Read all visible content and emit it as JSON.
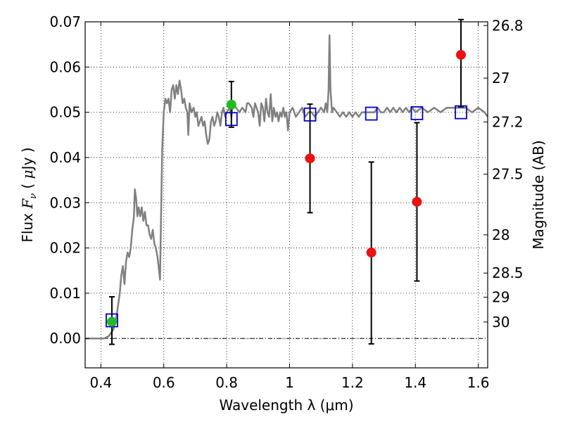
{
  "chart_data": {
    "type": "scatter",
    "xlabel": "Wavelength  λ (μm)",
    "ylabel": "Flux  F_ν  ( μJy )",
    "ylabel_parts": {
      "prefix": "Flux ",
      "symbol": "F",
      "subscript": "ν",
      "open": " ( ",
      "unit_mu": "μ",
      "unit": "Jy",
      "close": " )"
    },
    "y2label": "Magnitude (AB)",
    "xlim": [
      0.35,
      1.63
    ],
    "ylim": [
      -0.0065,
      0.07
    ],
    "grid": true,
    "x_ticks": [
      0.4,
      0.6,
      0.8,
      1.0,
      1.2,
      1.4,
      1.6
    ],
    "x_tick_labels": [
      "0.4",
      "0.6",
      "0.8",
      "1",
      "1.2",
      "1.4",
      "1.6"
    ],
    "y_ticks": [
      0.0,
      0.01,
      0.02,
      0.03,
      0.04,
      0.05,
      0.06,
      0.07
    ],
    "y_tick_labels": [
      "0.00",
      "0.01",
      "0.02",
      "0.03",
      "0.04",
      "0.05",
      "0.06",
      "0.07"
    ],
    "y2_ticks": [
      26.8,
      27,
      27.2,
      27.5,
      28,
      28.5,
      29,
      30
    ],
    "y2_tick_labels": [
      "26.8",
      "27",
      "27.2",
      "27.5",
      "28",
      "28.5",
      "29",
      "30"
    ],
    "series": [
      {
        "kind": "line",
        "color": "#808080",
        "points": [
          [
            0.35,
            0.0
          ],
          [
            0.41,
            0.0
          ],
          [
            0.425,
            0.0005
          ],
          [
            0.44,
            0.002
          ],
          [
            0.45,
            0.005
          ],
          [
            0.46,
            0.01
          ],
          [
            0.465,
            0.014
          ],
          [
            0.47,
            0.016
          ],
          [
            0.475,
            0.012
          ],
          [
            0.48,
            0.017
          ],
          [
            0.485,
            0.019
          ],
          [
            0.49,
            0.018
          ],
          [
            0.495,
            0.02
          ],
          [
            0.5,
            0.024
          ],
          [
            0.505,
            0.027
          ],
          [
            0.508,
            0.033
          ],
          [
            0.512,
            0.031
          ],
          [
            0.516,
            0.027
          ],
          [
            0.52,
            0.029
          ],
          [
            0.525,
            0.027
          ],
          [
            0.53,
            0.029
          ],
          [
            0.535,
            0.026
          ],
          [
            0.54,
            0.028
          ],
          [
            0.545,
            0.025
          ],
          [
            0.55,
            0.025
          ],
          [
            0.555,
            0.023
          ],
          [
            0.56,
            0.022
          ],
          [
            0.565,
            0.024
          ],
          [
            0.57,
            0.021
          ],
          [
            0.575,
            0.02
          ],
          [
            0.58,
            0.018
          ],
          [
            0.585,
            0.015
          ],
          [
            0.588,
            0.013
          ],
          [
            0.59,
            0.022
          ],
          [
            0.595,
            0.042
          ],
          [
            0.6,
            0.05
          ],
          [
            0.605,
            0.053
          ],
          [
            0.61,
            0.052
          ],
          [
            0.615,
            0.053
          ],
          [
            0.62,
            0.05
          ],
          [
            0.625,
            0.055
          ],
          [
            0.63,
            0.056
          ],
          [
            0.635,
            0.053
          ],
          [
            0.64,
            0.056
          ],
          [
            0.645,
            0.054
          ],
          [
            0.65,
            0.057
          ],
          [
            0.655,
            0.055
          ],
          [
            0.66,
            0.052
          ],
          [
            0.665,
            0.053
          ],
          [
            0.67,
            0.051
          ],
          [
            0.675,
            0.05
          ],
          [
            0.678,
            0.045
          ],
          [
            0.682,
            0.052
          ],
          [
            0.688,
            0.05
          ],
          [
            0.695,
            0.051
          ],
          [
            0.7,
            0.049
          ],
          [
            0.705,
            0.05
          ],
          [
            0.71,
            0.047
          ],
          [
            0.715,
            0.048
          ],
          [
            0.72,
            0.049
          ],
          [
            0.725,
            0.047
          ],
          [
            0.73,
            0.048
          ],
          [
            0.735,
            0.045
          ],
          [
            0.74,
            0.043
          ],
          [
            0.745,
            0.044
          ],
          [
            0.75,
            0.048
          ],
          [
            0.755,
            0.049
          ],
          [
            0.76,
            0.047
          ],
          [
            0.765,
            0.048
          ],
          [
            0.77,
            0.05
          ],
          [
            0.775,
            0.049
          ],
          [
            0.78,
            0.047
          ],
          [
            0.785,
            0.05
          ],
          [
            0.79,
            0.051
          ],
          [
            0.795,
            0.049
          ],
          [
            0.8,
            0.05
          ],
          [
            0.81,
            0.051
          ],
          [
            0.815,
            0.049
          ],
          [
            0.82,
            0.052
          ],
          [
            0.83,
            0.051
          ],
          [
            0.84,
            0.05
          ],
          [
            0.85,
            0.051
          ],
          [
            0.86,
            0.05
          ],
          [
            0.865,
            0.052
          ],
          [
            0.87,
            0.052
          ],
          [
            0.88,
            0.051
          ],
          [
            0.885,
            0.049
          ],
          [
            0.89,
            0.052
          ],
          [
            0.9,
            0.05
          ],
          [
            0.905,
            0.047
          ],
          [
            0.91,
            0.052
          ],
          [
            0.915,
            0.051
          ],
          [
            0.92,
            0.048
          ],
          [
            0.925,
            0.053
          ],
          [
            0.93,
            0.05
          ],
          [
            0.935,
            0.049
          ],
          [
            0.94,
            0.054
          ],
          [
            0.945,
            0.048
          ],
          [
            0.95,
            0.051
          ],
          [
            0.955,
            0.049
          ],
          [
            0.96,
            0.05
          ],
          [
            0.965,
            0.048
          ],
          [
            0.97,
            0.05
          ],
          [
            0.975,
            0.049
          ],
          [
            0.98,
            0.051
          ],
          [
            0.985,
            0.049
          ],
          [
            0.99,
            0.05
          ],
          [
            0.995,
            0.046
          ],
          [
            1.0,
            0.05
          ],
          [
            1.01,
            0.051
          ],
          [
            1.02,
            0.049
          ],
          [
            1.03,
            0.05
          ],
          [
            1.04,
            0.051
          ],
          [
            1.05,
            0.049
          ],
          [
            1.06,
            0.05
          ],
          [
            1.07,
            0.05
          ],
          [
            1.08,
            0.049
          ],
          [
            1.09,
            0.05
          ],
          [
            1.1,
            0.051
          ],
          [
            1.11,
            0.05
          ],
          [
            1.115,
            0.052
          ],
          [
            1.12,
            0.05
          ],
          [
            1.124,
            0.055
          ],
          [
            1.127,
            0.067
          ],
          [
            1.13,
            0.055
          ],
          [
            1.135,
            0.05
          ],
          [
            1.14,
            0.051
          ],
          [
            1.15,
            0.05
          ],
          [
            1.16,
            0.049
          ],
          [
            1.17,
            0.05
          ],
          [
            1.18,
            0.049
          ],
          [
            1.19,
            0.05
          ],
          [
            1.2,
            0.049
          ],
          [
            1.21,
            0.05
          ],
          [
            1.22,
            0.049
          ],
          [
            1.23,
            0.05
          ],
          [
            1.24,
            0.05
          ],
          [
            1.25,
            0.05
          ],
          [
            1.26,
            0.05
          ],
          [
            1.27,
            0.05
          ],
          [
            1.28,
            0.051
          ],
          [
            1.29,
            0.05
          ],
          [
            1.3,
            0.05
          ],
          [
            1.31,
            0.051
          ],
          [
            1.32,
            0.05
          ],
          [
            1.33,
            0.051
          ],
          [
            1.34,
            0.05
          ],
          [
            1.35,
            0.051
          ],
          [
            1.36,
            0.05
          ],
          [
            1.37,
            0.051
          ],
          [
            1.38,
            0.05
          ],
          [
            1.39,
            0.051
          ],
          [
            1.4,
            0.05
          ],
          [
            1.42,
            0.051
          ],
          [
            1.44,
            0.05
          ],
          [
            1.46,
            0.051
          ],
          [
            1.48,
            0.05
          ],
          [
            1.5,
            0.051
          ],
          [
            1.52,
            0.051
          ],
          [
            1.54,
            0.051
          ],
          [
            1.56,
            0.051
          ],
          [
            1.58,
            0.05
          ],
          [
            1.6,
            0.051
          ],
          [
            1.62,
            0.05
          ],
          [
            1.63,
            0.049
          ]
        ]
      },
      {
        "kind": "markers",
        "marker": "open-square",
        "color": "#0000cc",
        "points": [
          [
            0.435,
            0.004
          ],
          [
            0.815,
            0.0485
          ],
          [
            1.065,
            0.0495
          ],
          [
            1.26,
            0.0497
          ],
          [
            1.405,
            0.0498
          ],
          [
            1.545,
            0.05
          ]
        ]
      },
      {
        "kind": "markers",
        "marker": "filled-circle",
        "color": "#22bb22",
        "points": [
          [
            0.435,
            0.0037
          ],
          [
            0.815,
            0.0517
          ]
        ]
      },
      {
        "kind": "markers",
        "marker": "filled-circle",
        "color": "#ee1111",
        "points": [
          [
            1.065,
            0.0398
          ],
          [
            1.26,
            0.019
          ],
          [
            1.405,
            0.0302
          ],
          [
            1.545,
            0.0627
          ]
        ]
      },
      {
        "kind": "errorbars",
        "color": "#000000",
        "bars": [
          {
            "x": 0.435,
            "ylow": -0.0013,
            "yhigh": 0.0092
          },
          {
            "x": 0.815,
            "ylow": 0.0467,
            "yhigh": 0.0568
          },
          {
            "x": 1.065,
            "ylow": 0.0278,
            "yhigh": 0.0518
          },
          {
            "x": 1.26,
            "ylow": -0.0012,
            "yhigh": 0.039
          },
          {
            "x": 1.405,
            "ylow": 0.0127,
            "yhigh": 0.0477
          },
          {
            "x": 1.545,
            "ylow": 0.0512,
            "yhigh": 0.0705
          }
        ]
      }
    ]
  }
}
